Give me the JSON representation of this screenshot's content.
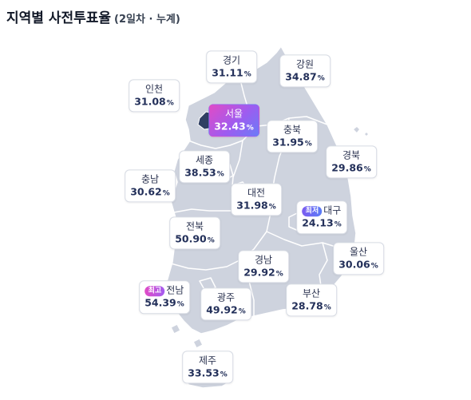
{
  "title": "지역별 사전투표율",
  "subtitle": "(2일차 · 누계)",
  "badges": {
    "max": "최고",
    "min": "최저"
  },
  "colors": {
    "land": "#ced3de",
    "border": "#ffffff",
    "seoul": "#2f3f63",
    "highlight_start": "#e14bc6",
    "highlight_end": "#6a7cf7"
  },
  "regions": [
    {
      "key": "gyeonggi",
      "name": "경기",
      "value": "31.11",
      "unit": "%"
    },
    {
      "key": "gangwon",
      "name": "강원",
      "value": "34.87",
      "unit": "%"
    },
    {
      "key": "incheon",
      "name": "인천",
      "value": "31.08",
      "unit": "%"
    },
    {
      "key": "seoul",
      "name": "서울",
      "value": "32.43",
      "unit": "%",
      "highlight": true
    },
    {
      "key": "chungbuk",
      "name": "충북",
      "value": "31.95",
      "unit": "%"
    },
    {
      "key": "sejong",
      "name": "세종",
      "value": "38.53",
      "unit": "%"
    },
    {
      "key": "gyeongbuk",
      "name": "경북",
      "value": "29.86",
      "unit": "%"
    },
    {
      "key": "chungnam",
      "name": "충남",
      "value": "30.62",
      "unit": "%"
    },
    {
      "key": "daejeon",
      "name": "대전",
      "value": "31.98",
      "unit": "%"
    },
    {
      "key": "daegu",
      "name": "대구",
      "value": "24.13",
      "unit": "%",
      "badge": "min"
    },
    {
      "key": "jeonbuk",
      "name": "전북",
      "value": "50.90",
      "unit": "%"
    },
    {
      "key": "ulsan",
      "name": "울산",
      "value": "30.06",
      "unit": "%"
    },
    {
      "key": "gyeongnam",
      "name": "경남",
      "value": "29.92",
      "unit": "%"
    },
    {
      "key": "jeonnam",
      "name": "전남",
      "value": "54.39",
      "unit": "%",
      "badge": "max"
    },
    {
      "key": "gwangju",
      "name": "광주",
      "value": "49.92",
      "unit": "%"
    },
    {
      "key": "busan",
      "name": "부산",
      "value": "28.78",
      "unit": "%"
    },
    {
      "key": "jeju",
      "name": "제주",
      "value": "33.53",
      "unit": "%"
    }
  ]
}
